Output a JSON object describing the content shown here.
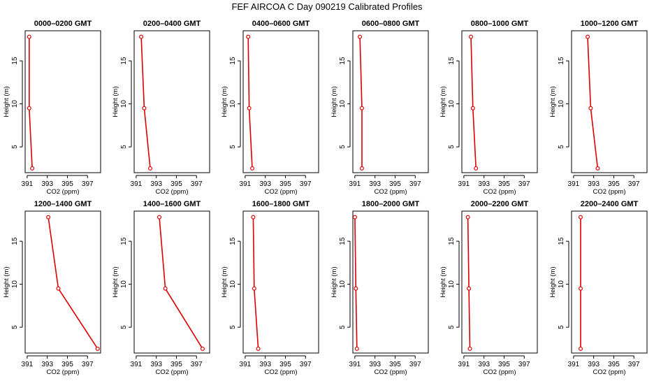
{
  "title": "FEF AIRCOA C  Day 090219  Calibrated Profiles",
  "colors": {
    "series": "#dd0000",
    "axes": "#000000"
  },
  "chart_data": {
    "type": "line",
    "title": "FEF AIRCOA C  Day 090219  Calibrated Profiles",
    "xlabel": "CO2 (ppm)",
    "ylabel": "Height (m)",
    "xlim": [
      390.8,
      398.3
    ],
    "ylim": [
      2.0,
      18.5
    ],
    "xticks": [
      391,
      393,
      395,
      397
    ],
    "yticks": [
      5,
      10,
      15
    ],
    "grid": false,
    "panels": [
      {
        "title": "0000–0200 GMT",
        "points": [
          {
            "x": 391.5,
            "y": 2.5
          },
          {
            "x": 391.2,
            "y": 9.5
          },
          {
            "x": 391.2,
            "y": 17.8
          }
        ]
      },
      {
        "title": "0200–0400 GMT",
        "points": [
          {
            "x": 392.4,
            "y": 2.5
          },
          {
            "x": 391.8,
            "y": 9.5
          },
          {
            "x": 391.5,
            "y": 17.8
          }
        ]
      },
      {
        "title": "0400–0600 GMT",
        "points": [
          {
            "x": 391.7,
            "y": 2.5
          },
          {
            "x": 391.4,
            "y": 9.5
          },
          {
            "x": 391.3,
            "y": 17.8
          }
        ]
      },
      {
        "title": "0600–0800 GMT",
        "points": [
          {
            "x": 391.7,
            "y": 2.5
          },
          {
            "x": 391.7,
            "y": 9.5
          },
          {
            "x": 391.5,
            "y": 17.8
          }
        ]
      },
      {
        "title": "0800–1000 GMT",
        "points": [
          {
            "x": 392.2,
            "y": 2.5
          },
          {
            "x": 391.9,
            "y": 9.5
          },
          {
            "x": 391.7,
            "y": 17.8
          }
        ]
      },
      {
        "title": "1000–1200 GMT",
        "points": [
          {
            "x": 393.4,
            "y": 2.5
          },
          {
            "x": 392.7,
            "y": 9.5
          },
          {
            "x": 392.4,
            "y": 17.8
          }
        ]
      },
      {
        "title": "1200–1400 GMT",
        "points": [
          {
            "x": 398.0,
            "y": 2.5
          },
          {
            "x": 394.1,
            "y": 9.5
          },
          {
            "x": 393.1,
            "y": 17.8
          }
        ]
      },
      {
        "title": "1400–1600 GMT",
        "points": [
          {
            "x": 397.6,
            "y": 2.5
          },
          {
            "x": 393.9,
            "y": 9.5
          },
          {
            "x": 393.3,
            "y": 17.8
          }
        ]
      },
      {
        "title": "1600–1800 GMT",
        "points": [
          {
            "x": 392.3,
            "y": 2.5
          },
          {
            "x": 391.9,
            "y": 9.5
          },
          {
            "x": 391.8,
            "y": 17.8
          }
        ]
      },
      {
        "title": "1800–2000 GMT",
        "points": [
          {
            "x": 391.2,
            "y": 2.5
          },
          {
            "x": 391.1,
            "y": 9.5
          },
          {
            "x": 391.0,
            "y": 17.8
          }
        ]
      },
      {
        "title": "2000–2200 GMT",
        "points": [
          {
            "x": 391.6,
            "y": 2.5
          },
          {
            "x": 391.5,
            "y": 9.5
          },
          {
            "x": 391.4,
            "y": 17.8
          }
        ]
      },
      {
        "title": "2200–2400 GMT",
        "points": [
          {
            "x": 391.7,
            "y": 2.5
          },
          {
            "x": 391.7,
            "y": 9.5
          },
          {
            "x": 391.7,
            "y": 17.8
          }
        ]
      }
    ]
  }
}
